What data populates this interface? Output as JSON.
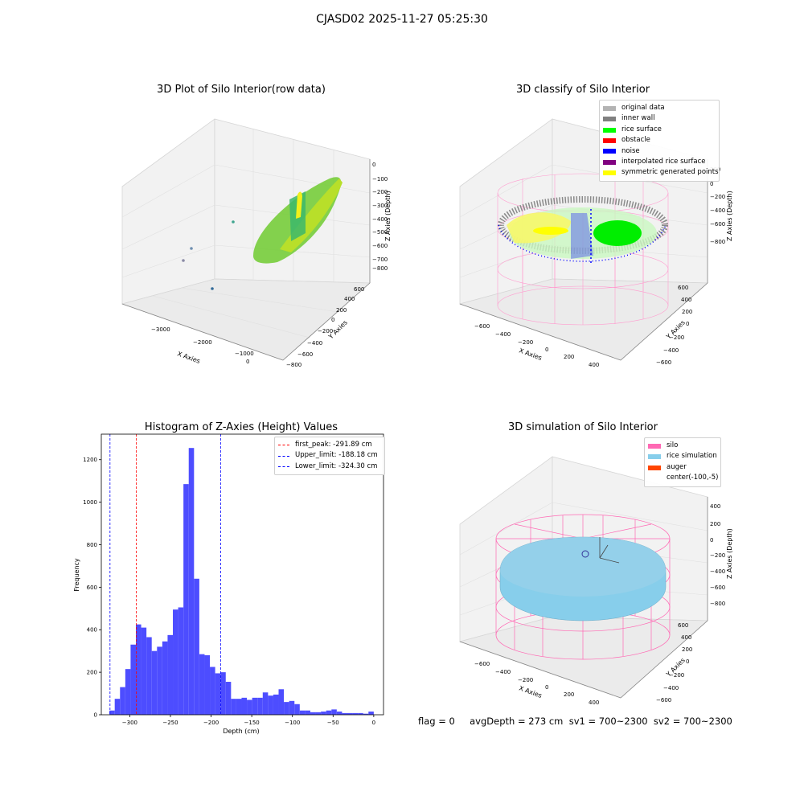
{
  "suptitle": "CJASD02 2025-11-27 05:25:30",
  "colors": {
    "original_data": "#b3b3b3",
    "inner_wall": "#808080",
    "rice_surface": "#00ff00",
    "obstacle": "#ff0000",
    "noise": "#0000ff",
    "interpolated_rice_surface": "#800080",
    "symmetric_generated_points": "#ffff00",
    "silo": "#ff69b4",
    "rice_simulation": "#87ceeb",
    "auger": "#ff4500",
    "hist_bar": "#4d4dff"
  },
  "plots": {
    "raw": {
      "title": "3D Plot of Silo Interior(row data)",
      "xlabel": "X Axies",
      "ylabel": "Y Axies",
      "zlabel": "Z Axies (Depth)",
      "xticks": [
        "−3000",
        "−2000",
        "−1000",
        "0"
      ],
      "yticks": [
        "−800",
        "−600",
        "−400",
        "−200",
        "0",
        "200",
        "400",
        "600"
      ],
      "zticks": [
        "0",
        "−100",
        "−200",
        "−300",
        "−400",
        "−500",
        "−600",
        "−700",
        "−800"
      ]
    },
    "classify": {
      "title": "3D classify of Silo Interior",
      "xlabel": "X Axies",
      "ylabel": "Y Axies",
      "zlabel": "Z Axies (Depth)",
      "xticks": [
        "−600",
        "−400",
        "−200",
        "0",
        "200",
        "400"
      ],
      "yticks": [
        "−600",
        "−400",
        "−200",
        "0",
        "200",
        "400",
        "600"
      ],
      "zticks": [
        "200",
        "0",
        "−200",
        "−400",
        "−600",
        "−800"
      ],
      "legend": [
        {
          "label": "original data",
          "color": "#b3b3b3"
        },
        {
          "label": "inner wall",
          "color": "#808080"
        },
        {
          "label": "rice surface",
          "color": "#00ff00"
        },
        {
          "label": "obstacle",
          "color": "#ff0000"
        },
        {
          "label": "noise",
          "color": "#0000ff"
        },
        {
          "label": "interpolated rice surface",
          "color": "#800080"
        },
        {
          "label": "symmetric generated points",
          "color": "#ffff00"
        }
      ]
    },
    "simulation": {
      "title": "3D simulation of Silo Interior",
      "xlabel": "X Axies",
      "ylabel": "Y Axies",
      "zlabel": "Z Axies (Depth)",
      "xticks": [
        "−600",
        "−400",
        "−200",
        "0",
        "200",
        "400"
      ],
      "yticks": [
        "−600",
        "−400",
        "−200",
        "0",
        "200",
        "400",
        "600"
      ],
      "zticks": [
        "400",
        "200",
        "0",
        "−200",
        "−400",
        "−600",
        "−800"
      ],
      "legend": [
        {
          "label": "silo",
          "color": "#ff69b4"
        },
        {
          "label": "rice simulation",
          "color": "#87ceeb"
        },
        {
          "label": "auger",
          "color": "#ff4500"
        },
        {
          "label": "center(-100,-5)",
          "color": ""
        }
      ]
    }
  },
  "chart_data": {
    "type": "bar",
    "title": "Histogram of Z-Axies (Height) Values",
    "xlabel": "Depth (cm)",
    "ylabel": "Frequency",
    "xlim": [
      -335,
      12
    ],
    "ylim": [
      0,
      1320
    ],
    "xticks": [
      -300,
      -250,
      -200,
      -150,
      -100,
      -50,
      0
    ],
    "yticks": [
      0,
      200,
      400,
      600,
      800,
      1000,
      1200
    ],
    "bin_width": 6.5,
    "bin_start": -325,
    "values": [
      20,
      75,
      130,
      215,
      330,
      425,
      410,
      365,
      300,
      320,
      345,
      375,
      495,
      505,
      1085,
      1255,
      640,
      285,
      280,
      225,
      195,
      200,
      155,
      75,
      75,
      80,
      70,
      80,
      80,
      105,
      90,
      95,
      120,
      60,
      65,
      50,
      20,
      20,
      12,
      12,
      15,
      20,
      25,
      15,
      8,
      8,
      8,
      8,
      5,
      15
    ],
    "lines": [
      {
        "label": "first_peak: -291.89 cm",
        "x": -291.89,
        "color": "#ff0000"
      },
      {
        "label": "Upper_limit: -188.18 cm",
        "x": -188.18,
        "color": "#0000ff"
      },
      {
        "label": "Lower_limit: -324.30 cm",
        "x": -324.3,
        "color": "#0000ff"
      }
    ],
    "legend_position": "top-right",
    "grid": false
  },
  "footer": {
    "text": "flag = 0     avgDepth = 273 cm  sv1 = 700~2300  sv2 = 700~2300"
  }
}
